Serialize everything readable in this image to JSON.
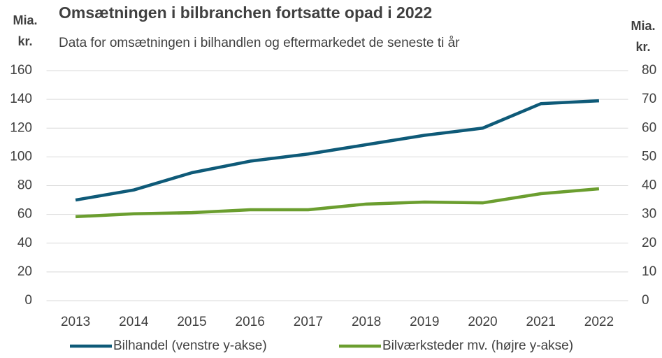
{
  "chart_data": {
    "type": "line",
    "title": "Omsætningen i bilbranchen fortsatte opad i 2022",
    "subtitle": "Data for omsætningen i bilhandlen og eftermarkedet de seneste ti år",
    "ylabel": [
      "Mia.",
      "kr."
    ],
    "y2label": [
      "Mia.",
      "kr."
    ],
    "categories": [
      "2013",
      "2014",
      "2015",
      "2016",
      "2017",
      "2018",
      "2019",
      "2020",
      "2021",
      "2022"
    ],
    "series": [
      {
        "name": "Bilhandel (venstre y-akse)",
        "color": "#0e5a78",
        "values": [
          70,
          77,
          89,
          97,
          102,
          108.5,
          115,
          120,
          137,
          139
        ]
      },
      {
        "name": "Bilværksteder mv. (højre y-akse)",
        "color": "#6b9e2f",
        "axis": "y2",
        "values": [
          29.2,
          30.2,
          30.6,
          31.6,
          31.6,
          33.6,
          34.3,
          34,
          37.2,
          38.9
        ]
      }
    ],
    "ylim": [
      0,
      160
    ],
    "yticks": [
      0,
      20,
      40,
      60,
      80,
      100,
      120,
      140,
      160
    ],
    "y2lim": [
      0,
      80
    ],
    "y2ticks": [
      0,
      10,
      20,
      30,
      40,
      50,
      60,
      70,
      80
    ],
    "grid": true,
    "legend": "bottom"
  }
}
